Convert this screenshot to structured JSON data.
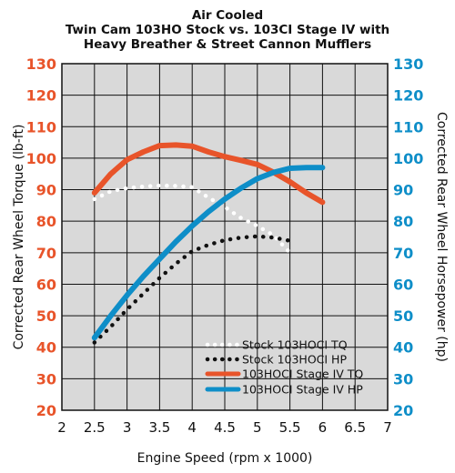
{
  "chart_data": {
    "type": "line",
    "title_lines": [
      "Air Cooled",
      "Twin Cam 103HO Stock vs. 103CI Stage IV with",
      "Heavy Breather & Street Cannon Mufflers"
    ],
    "xlabel": "Engine Speed (rpm x 1000)",
    "ylabel_left": "Corrected Rear Wheel Torque (lb-ft)",
    "ylabel_right": "Corrected Rear Wheel Horsepower (hp)",
    "xlim": [
      2,
      7
    ],
    "ylim_left": [
      20,
      130
    ],
    "ylim_right": [
      20,
      130
    ],
    "x_ticks": [
      "2",
      "2.5",
      "3",
      "3.5",
      "4",
      "4.5",
      "5",
      "5.5",
      "6",
      "6.5",
      "7"
    ],
    "y_ticks_left": [
      "130",
      "120",
      "110",
      "100",
      "90",
      "80",
      "70",
      "60",
      "50",
      "40",
      "30",
      "20"
    ],
    "y_ticks_right": [
      "130",
      "120",
      "110",
      "100",
      "90",
      "80",
      "70",
      "60",
      "50",
      "40",
      "30",
      "20"
    ],
    "grid": true,
    "legend_position": "bottom-right",
    "colors": {
      "left_axis": "#e8542a",
      "right_axis": "#0e8ec8",
      "plot_bg": "#d9d9d9"
    },
    "series": [
      {
        "name": "Stock 103HOCI TQ",
        "style": "dotted-white",
        "color": "#ffffff",
        "x": [
          2.5,
          2.75,
          3.0,
          3.25,
          3.5,
          3.75,
          4.0,
          4.25,
          4.5,
          4.75,
          5.0,
          5.25,
          5.5
        ],
        "y": [
          87,
          89.5,
          90.5,
          91,
          91.3,
          91.2,
          90.8,
          87.5,
          84.5,
          81,
          78.5,
          75.5,
          70
        ]
      },
      {
        "name": "Stock 103HOCI HP",
        "style": "dotted-black",
        "color": "#111111",
        "x": [
          2.5,
          2.75,
          3.0,
          3.25,
          3.5,
          3.75,
          4.0,
          4.25,
          4.5,
          4.75,
          5.0,
          5.25,
          5.5
        ],
        "y": [
          41.5,
          46.5,
          52,
          57,
          62,
          66.5,
          70.5,
          72.5,
          74,
          74.8,
          75.2,
          74.8,
          73.8
        ]
      },
      {
        "name": "103HOCI Stage IV TQ",
        "style": "solid",
        "color": "#e8542a",
        "x": [
          2.5,
          2.75,
          3.0,
          3.25,
          3.5,
          3.75,
          4.0,
          4.25,
          4.5,
          4.75,
          5.0,
          5.25,
          5.5,
          5.75,
          6.0
        ],
        "y": [
          89,
          95,
          99.5,
          102,
          104,
          104.2,
          103.8,
          102,
          100.5,
          99.3,
          98,
          95.5,
          92.5,
          89,
          86
        ]
      },
      {
        "name": "103HOCI Stage IV HP",
        "style": "solid",
        "color": "#0e8ec8",
        "x": [
          2.5,
          2.75,
          3.0,
          3.25,
          3.5,
          3.75,
          4.0,
          4.25,
          4.5,
          4.75,
          5.0,
          5.25,
          5.5,
          5.75,
          6.0
        ],
        "y": [
          43,
          50,
          56.5,
          62.5,
          68,
          73.5,
          78.5,
          83,
          87,
          90.5,
          93.5,
          95.5,
          96.8,
          97,
          97
        ]
      }
    ]
  }
}
